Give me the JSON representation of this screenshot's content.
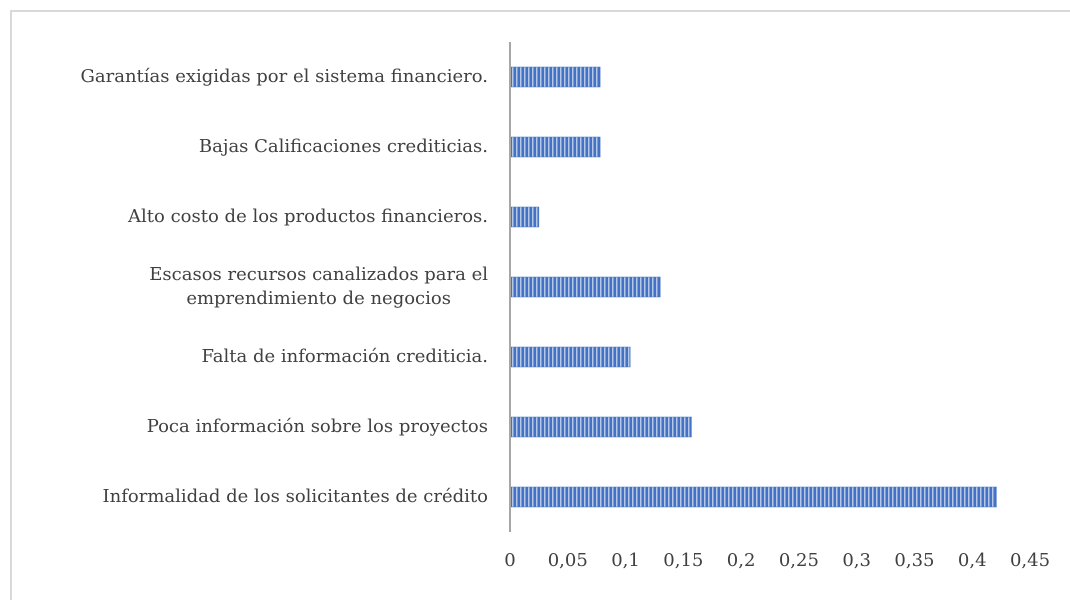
{
  "chart_data": {
    "type": "bar",
    "orientation": "horizontal",
    "categories": [
      "Garantías exigidas por el sistema financiero.",
      "Bajas Calificaciones crediticias.",
      "Alto costo de los productos financieros.",
      "Escasos recursos canalizados para el\nemprendimiento de negocios",
      "Falta de información crediticia.",
      "Poca información sobre los proyectos",
      "Informalidad de los solicitantes de crédito"
    ],
    "values": [
      0.078,
      0.078,
      0.025,
      0.13,
      0.104,
      0.157,
      0.421
    ],
    "color": "#4472c4",
    "xlim": [
      0,
      0.45
    ],
    "xticks": [
      0,
      {
        "value": 0.05,
        "label": "0,05"
      },
      {
        "value": 0.1,
        "label": "0,1"
      },
      {
        "value": 0.15,
        "label": "0,15"
      },
      {
        "value": 0.2,
        "label": "0,2"
      },
      {
        "value": 0.25,
        "label": "0,25"
      },
      {
        "value": 0.3,
        "label": "0,3"
      },
      {
        "value": 0.35,
        "label": "0,35"
      },
      {
        "value": 0.4,
        "label": "0,4"
      },
      {
        "value": 0.45,
        "label": "0,45"
      }
    ],
    "grid": false
  }
}
